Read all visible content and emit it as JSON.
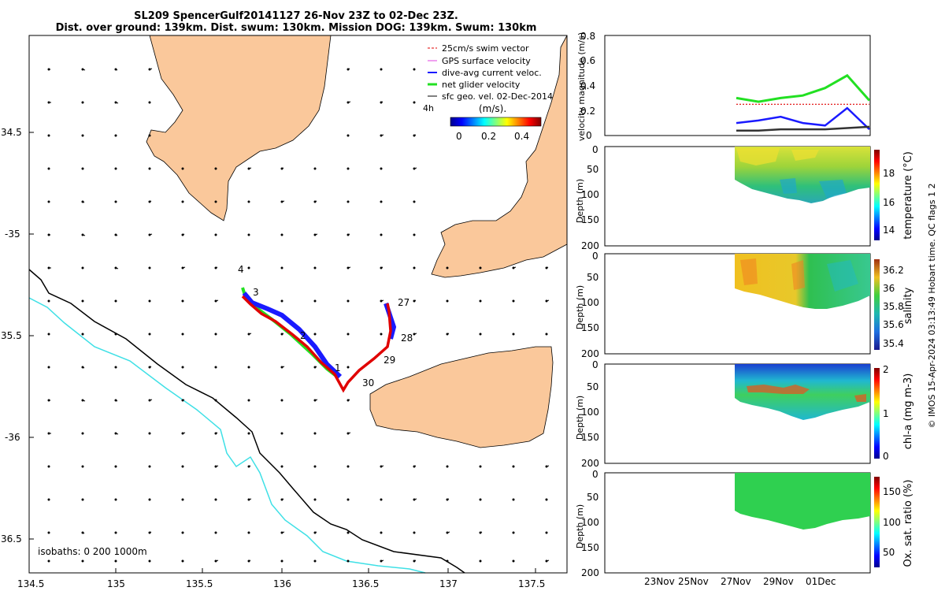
{
  "figure": {
    "title_line1": "SL209 SpencerGulf20141127 26-Nov 23Z to 02-Dec 23Z.",
    "title_line2": "Dist. over ground: 139km. Dist. swum: 130km. Mission DOG: 139km. Swum: 130km",
    "credit": "© IMOS 15-Apr-2024 03:13:49 Hobart time. QC flags 1  2"
  },
  "colors": {
    "land": "#fac89b",
    "coast": "#000000",
    "isobath_200": "#000000",
    "isobath_1000": "#3fe0e6",
    "track": "#e00000",
    "dive_avg": "#1a1aff",
    "net_glider": "#22e022",
    "gps": "#e040e0",
    "geo_vel": "#333333"
  },
  "map": {
    "lon_ticks": [
      "134.5",
      "135",
      "135.5",
      "136",
      "136.5",
      "137",
      "137.5"
    ],
    "lat_ticks": [
      "34.5",
      "-35",
      "35.5",
      "-36",
      "36.5"
    ],
    "day_labels": [
      "4",
      "3",
      "2",
      "1",
      "30",
      "29",
      "28",
      "27"
    ],
    "legend": [
      {
        "label": "25cm/s swim vector",
        "icon": "red-dashed-arrow"
      },
      {
        "label": "GPS surface velocity",
        "icon": "magenta-arrow"
      },
      {
        "label": "dive-avg current veloc.",
        "icon": "blue-arrow"
      },
      {
        "label": "net glider velocity",
        "icon": "green-arrow"
      },
      {
        "label": "sfc geo. vel. 02-Dec-2014",
        "icon": "black-arrow"
      }
    ],
    "legend_scale_tag": "4h",
    "colorbar_unit": "(m/s).",
    "colorbar_ticks": [
      "0",
      "0.2",
      "0.4"
    ],
    "isobaths_label": "isobaths: 0   200  1000m"
  },
  "time_axis": {
    "ticks": [
      "23Nov",
      "25Nov",
      "27Nov",
      "29Nov",
      "01Dec"
    ]
  },
  "chart_data": [
    {
      "type": "line",
      "title": "",
      "xlabel": "",
      "ylabel": "velocity magnitude (m/s)",
      "ylim": [
        0,
        0.8
      ],
      "yticks": [
        "0",
        "0.2",
        "0.4",
        "0.6",
        "0.8"
      ],
      "x": [
        "27Nov",
        "28Nov",
        "29Nov",
        "30Nov",
        "01Dec",
        "02Dec",
        "03Dec"
      ],
      "series": [
        {
          "values": [
            0.3,
            0.27,
            0.3,
            0.32,
            0.38,
            0.48,
            0.28
          ]
        },
        {
          "values": [
            0.25,
            0.25,
            0.25,
            0.25,
            0.25,
            0.25,
            0.25
          ]
        },
        {
          "values": [
            0.1,
            0.12,
            0.15,
            0.1,
            0.08,
            0.22,
            0.05
          ]
        },
        {
          "values": [
            0.04,
            0.04,
            0.05,
            0.05,
            0.05,
            0.06,
            0.07
          ]
        }
      ]
    },
    {
      "type": "heatmap",
      "title": "",
      "xlabel": "",
      "ylabel": "Depth (m)",
      "yticks": [
        "0",
        "50",
        "100",
        "150",
        "200"
      ],
      "colorbar_label": "temperature (°C)",
      "colorbar_ticks": [
        "14",
        "16",
        "18"
      ],
      "clim": [
        13.5,
        19.5
      ]
    },
    {
      "type": "heatmap",
      "title": "",
      "xlabel": "",
      "ylabel": "Depth (m)",
      "yticks": [
        "0",
        "50",
        "100",
        "150",
        "200"
      ],
      "colorbar_label": "salinity",
      "colorbar_ticks": [
        "35.4",
        "35.6",
        "35.8",
        "36",
        "36.2"
      ],
      "clim": [
        35.3,
        36.3
      ]
    },
    {
      "type": "heatmap",
      "title": "",
      "xlabel": "",
      "ylabel": "Depth (m)",
      "yticks": [
        "0",
        "50",
        "100",
        "150",
        "200"
      ],
      "colorbar_label": "chl-a (mg m-3)",
      "colorbar_ticks": [
        "0",
        "1",
        "2"
      ],
      "clim": [
        0,
        2
      ]
    },
    {
      "type": "heatmap",
      "title": "",
      "xlabel": "",
      "ylabel": "Depth (m)",
      "yticks": [
        "0",
        "50",
        "100",
        "150",
        "200"
      ],
      "colorbar_label": "Ox. sat. ratio (%)",
      "colorbar_ticks": [
        "50",
        "100",
        "150"
      ],
      "clim": [
        20,
        170
      ]
    }
  ]
}
